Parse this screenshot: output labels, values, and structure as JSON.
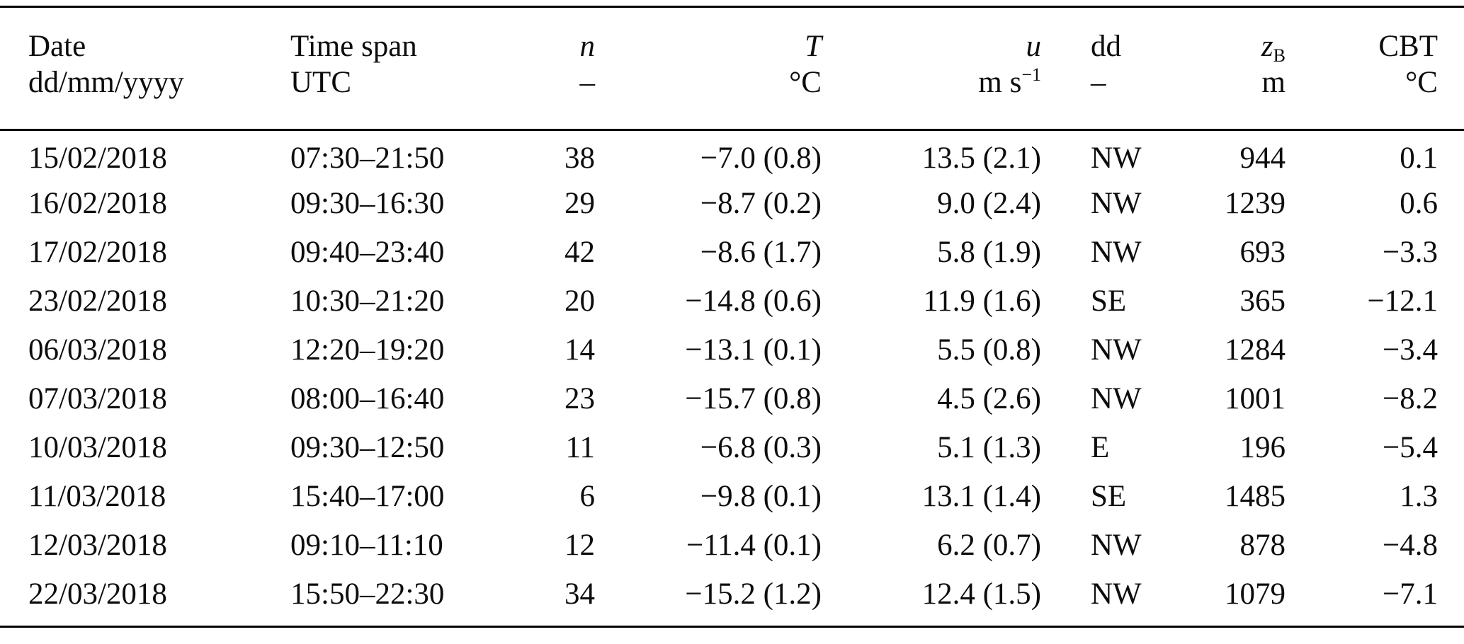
{
  "table": {
    "columns": [
      {
        "key": "date",
        "label": "Date",
        "unit": "dd/mm/yyyy",
        "variable": false
      },
      {
        "key": "time-span",
        "label": "Time span",
        "unit": "UTC",
        "variable": false
      },
      {
        "key": "n",
        "label": "n",
        "unit": "–",
        "variable": true
      },
      {
        "key": "T",
        "label": "T",
        "unit": "°C",
        "variable": true
      },
      {
        "key": "u",
        "label": "u",
        "unit": "m s",
        "unit_sup": "−1",
        "variable": true
      },
      {
        "key": "dd",
        "label": "dd",
        "unit": "–",
        "variable": false
      },
      {
        "key": "zB",
        "label": "z",
        "label_sub": "B",
        "unit": "m",
        "variable": true
      },
      {
        "key": "CBT",
        "label": "CBT",
        "unit": "°C",
        "variable": false
      }
    ],
    "rows": [
      [
        "15/02/2018",
        "07:30–21:50",
        "38",
        "−7.0 (0.8)",
        "13.5 (2.1)",
        "NW",
        "944",
        "0.1"
      ],
      [
        "16/02/2018",
        "09:30–16:30",
        "29",
        "−8.7 (0.2)",
        "9.0 (2.4)",
        "NW",
        "1239",
        "0.6"
      ],
      [
        "17/02/2018",
        "09:40–23:40",
        "42",
        "−8.6 (1.7)",
        "5.8 (1.9)",
        "NW",
        "693",
        "−3.3"
      ],
      [
        "23/02/2018",
        "10:30–21:20",
        "20",
        "−14.8 (0.6)",
        "11.9 (1.6)",
        "SE",
        "365",
        "−12.1"
      ],
      [
        "06/03/2018",
        "12:20–19:20",
        "14",
        "−13.1 (0.1)",
        "5.5 (0.8)",
        "NW",
        "1284",
        "−3.4"
      ],
      [
        "07/03/2018",
        "08:00–16:40",
        "23",
        "−15.7 (0.8)",
        "4.5 (2.6)",
        "NW",
        "1001",
        "−8.2"
      ],
      [
        "10/03/2018",
        "09:30–12:50",
        "11",
        "−6.8 (0.3)",
        "5.1 (1.3)",
        "E",
        "196",
        "−5.4"
      ],
      [
        "11/03/2018",
        "15:40–17:00",
        "6",
        "−9.8 (0.1)",
        "13.1 (1.4)",
        "SE",
        "1485",
        "1.3"
      ],
      [
        "12/03/2018",
        "09:10–11:10",
        "12",
        "−11.4 (0.1)",
        "6.2 (0.7)",
        "NW",
        "878",
        "−4.8"
      ],
      [
        "22/03/2018",
        "15:50–22:30",
        "34",
        "−15.2 (1.2)",
        "12.4 (1.5)",
        "NW",
        "1079",
        "−7.1"
      ]
    ],
    "colors": {
      "text": "#0d0d0d",
      "background": "#ffffff",
      "rule": "#000000"
    }
  }
}
